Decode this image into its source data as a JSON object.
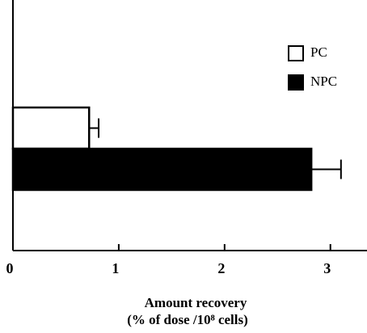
{
  "chart_data": {
    "type": "hbar",
    "categories": [
      null
    ],
    "series": [
      {
        "name": "PC",
        "color": "#ffffff",
        "values": [
          0.72
        ],
        "errors": [
          0.09
        ]
      },
      {
        "name": "NPC",
        "color": "#000000",
        "values": [
          2.82
        ],
        "errors": [
          0.28
        ]
      }
    ],
    "xlim": [
      0,
      3.3
    ],
    "xticks": [
      0,
      1,
      2,
      3
    ],
    "xlabel": [
      "Amount recovery",
      "(% of dose /10⁸ cells)"
    ],
    "legend": "upper right"
  }
}
